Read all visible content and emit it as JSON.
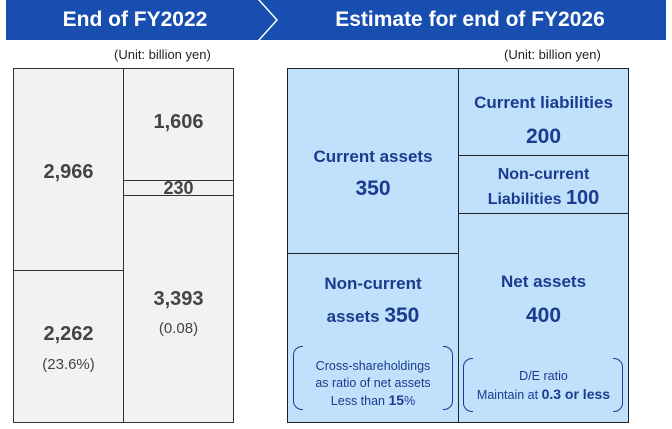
{
  "header": {
    "left_title": "End of FY2022",
    "right_title": "Estimate for end of FY2026"
  },
  "unit_label": "(Unit: billion yen)",
  "fy2022": {
    "current_assets": "2,966",
    "non_current_assets": "2,262",
    "non_current_assets_ratio": "(23.6%)",
    "current_liabilities": "1,606",
    "non_current_liabilities": "230",
    "net_assets": "3,393",
    "de_ratio": "(0.08)"
  },
  "fy2026": {
    "current_assets_label": "Current assets",
    "current_assets_value": "350",
    "non_current_assets_label_line1": "Non-current",
    "non_current_assets_label_line2": "assets",
    "non_current_assets_value": "350",
    "cross_note_line1": "Cross-shareholdings",
    "cross_note_line2": "as ratio of net assets",
    "cross_note_line3_prefix": "Less than",
    "cross_note_value": "15",
    "cross_note_unit": "%",
    "current_liabilities_label": "Current liabilities",
    "current_liabilities_value": "200",
    "non_current_liabilities_label_line1": "Non-current",
    "non_current_liabilities_label_line2": "Liabilities",
    "non_current_liabilities_value": "100",
    "net_assets_label": "Net assets",
    "net_assets_value": "400",
    "de_note_line1": "D/E ratio",
    "de_note_line2_prefix": "Maintain at",
    "de_note_value": "0.3 or less"
  }
}
